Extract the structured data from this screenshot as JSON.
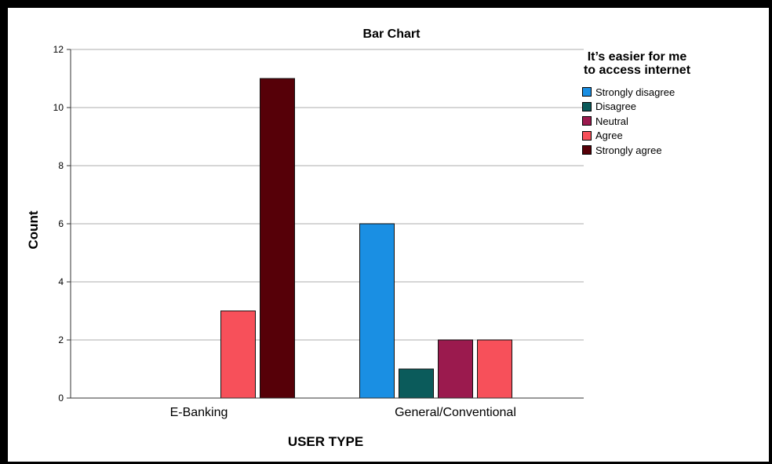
{
  "chart_data": {
    "type": "bar",
    "title": "Bar Chart",
    "xlabel": "USER TYPE",
    "ylabel": "Count",
    "categories": [
      "E-Banking",
      "General/Conventional"
    ],
    "ylim": [
      0,
      12
    ],
    "yticks": [
      0,
      2,
      4,
      6,
      8,
      10,
      12
    ],
    "grid": true,
    "legend": {
      "title": "It’s easier for me to access internet",
      "placement": "right"
    },
    "series": [
      {
        "name": "Strongly disagree",
        "color": "#1a8fe3",
        "values": [
          0,
          6
        ]
      },
      {
        "name": "Disagree",
        "color": "#0b5b5b",
        "values": [
          0,
          1
        ]
      },
      {
        "name": "Neutral",
        "color": "#9b1a4e",
        "values": [
          0,
          2
        ]
      },
      {
        "name": "Agree",
        "color": "#f7505a",
        "values": [
          3,
          2
        ]
      },
      {
        "name": "Strongly agree",
        "color": "#560008",
        "values": [
          11,
          0
        ]
      }
    ]
  }
}
